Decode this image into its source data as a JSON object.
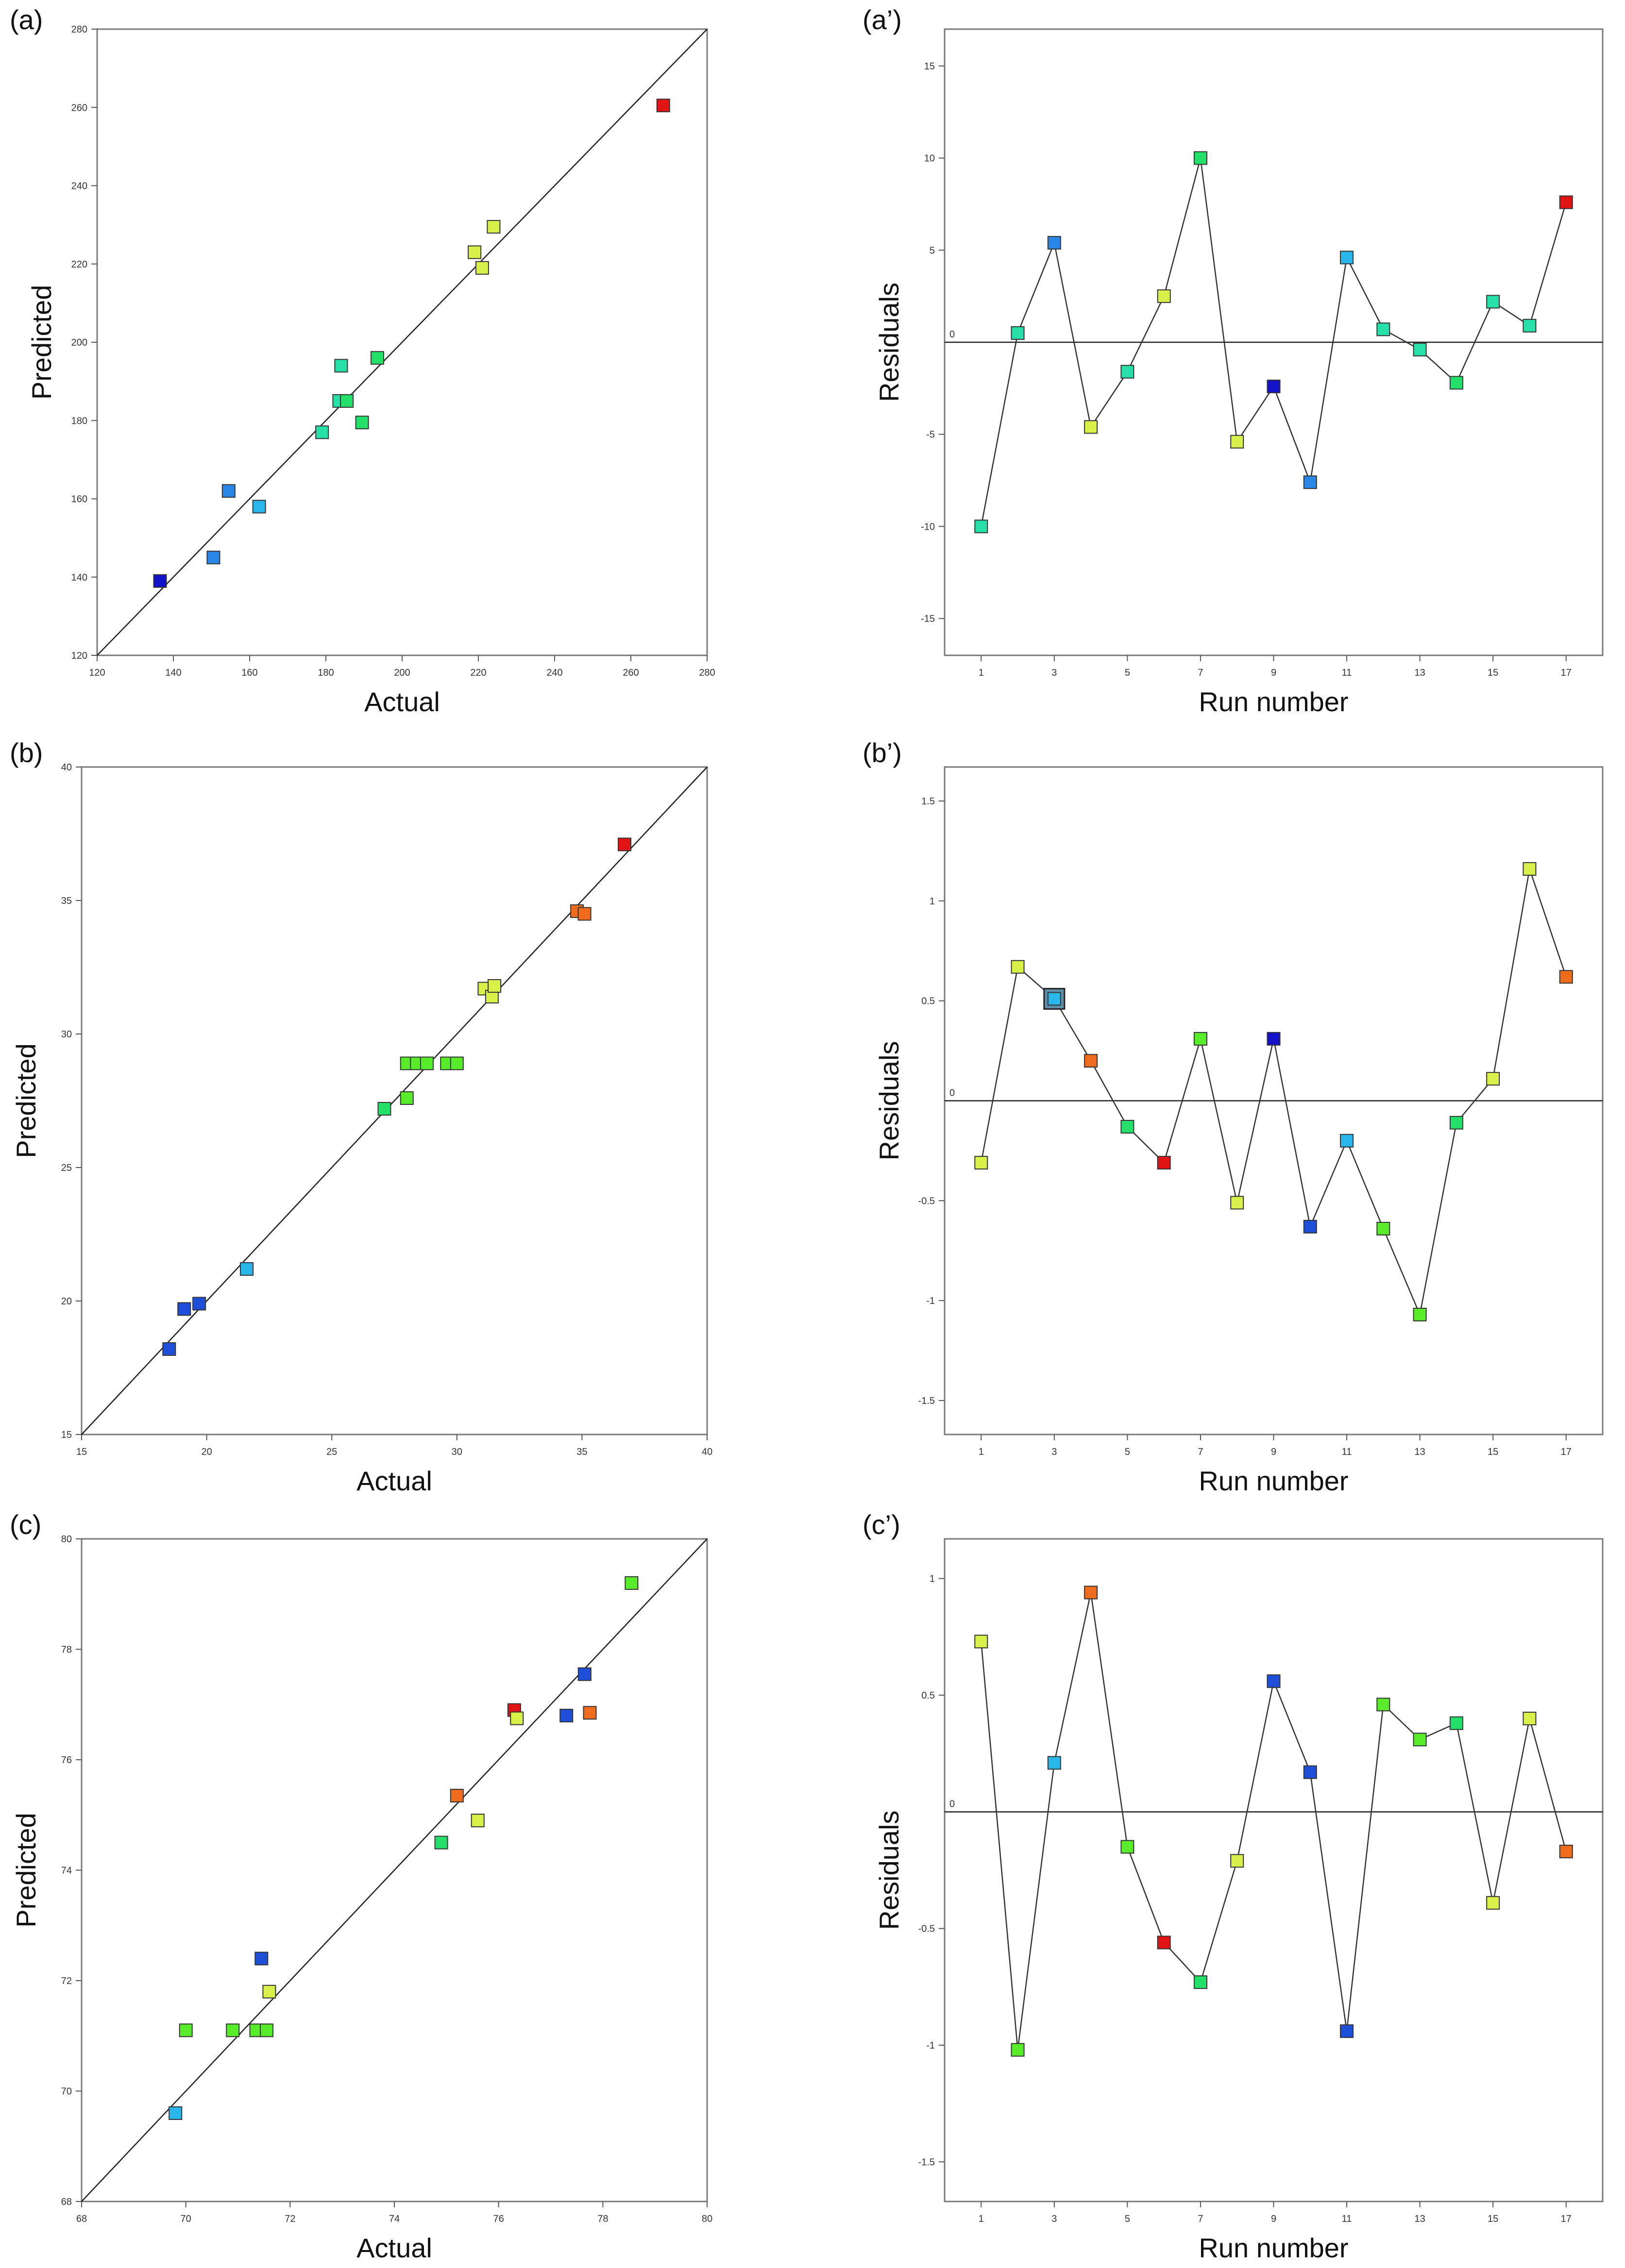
{
  "marker_palette": {
    "red": "#e01414",
    "orange": "#ef6b1d",
    "yellow_green": "#d7f04a",
    "lime": "#58ec2a",
    "green": "#24e06a",
    "teal": "#27e0a8",
    "sky": "#29b6ea",
    "blue_mid": "#2a86e6",
    "royal_blue": "#1f4fd8",
    "navy": "#1212c8"
  },
  "chart_data": [
    {
      "panel": "(a)",
      "type": "scatter",
      "xlabel": "Actual",
      "ylabel": "Predicted",
      "xlim": [
        120,
        280
      ],
      "ylim": [
        120,
        280
      ],
      "xticks": [
        120,
        140,
        160,
        180,
        200,
        220,
        240,
        260,
        280
      ],
      "yticks": [
        120,
        140,
        160,
        180,
        200,
        220,
        240,
        260,
        280
      ],
      "reference_line": [
        [
          120,
          120
        ],
        [
          280,
          280
        ]
      ],
      "points": [
        {
          "x": 136.5,
          "y": 139,
          "color": "navy"
        },
        {
          "x": 150.5,
          "y": 145,
          "color": "blue_mid"
        },
        {
          "x": 154.5,
          "y": 162,
          "color": "blue_mid"
        },
        {
          "x": 162.5,
          "y": 158,
          "color": "sky"
        },
        {
          "x": 179,
          "y": 177,
          "color": "teal"
        },
        {
          "x": 183.5,
          "y": 185,
          "color": "teal"
        },
        {
          "x": 184,
          "y": 194,
          "color": "teal"
        },
        {
          "x": 185.5,
          "y": 185,
          "color": "green"
        },
        {
          "x": 189.5,
          "y": 179.5,
          "color": "green"
        },
        {
          "x": 193.5,
          "y": 196,
          "color": "green"
        },
        {
          "x": 219,
          "y": 223,
          "color": "yellow_green"
        },
        {
          "x": 221,
          "y": 219,
          "color": "yellow_green"
        },
        {
          "x": 224,
          "y": 229.5,
          "color": "yellow_green"
        },
        {
          "x": 268.5,
          "y": 260.5,
          "color": "red"
        }
      ]
    },
    {
      "panel": "(a’)",
      "type": "line",
      "xlabel": "Run number",
      "ylabel": "Residuals",
      "xlim": [
        0,
        18
      ],
      "ylim": [
        -17,
        17
      ],
      "xticks": [
        1,
        3,
        5,
        7,
        9,
        11,
        13,
        15,
        17
      ],
      "yticks": [
        -15,
        -10,
        -5,
        0,
        5,
        10,
        15
      ],
      "zero_label": "0",
      "points": [
        {
          "x": 1,
          "y": -10,
          "color": "teal"
        },
        {
          "x": 2,
          "y": 0.5,
          "color": "teal"
        },
        {
          "x": 3,
          "y": 5.4,
          "color": "blue_mid"
        },
        {
          "x": 4,
          "y": -4.6,
          "color": "yellow_green"
        },
        {
          "x": 5,
          "y": -1.6,
          "color": "teal"
        },
        {
          "x": 6,
          "y": 2.5,
          "color": "yellow_green"
        },
        {
          "x": 7,
          "y": 10,
          "color": "green"
        },
        {
          "x": 8,
          "y": -5.4,
          "color": "yellow_green"
        },
        {
          "x": 9,
          "y": -2.4,
          "color": "navy"
        },
        {
          "x": 10,
          "y": -7.6,
          "color": "blue_mid"
        },
        {
          "x": 11,
          "y": 4.6,
          "color": "sky"
        },
        {
          "x": 12,
          "y": 0.7,
          "color": "teal"
        },
        {
          "x": 13,
          "y": -0.4,
          "color": "teal"
        },
        {
          "x": 14,
          "y": -2.2,
          "color": "green"
        },
        {
          "x": 15,
          "y": 2.2,
          "color": "teal"
        },
        {
          "x": 16,
          "y": 0.9,
          "color": "teal"
        },
        {
          "x": 17,
          "y": 7.6,
          "color": "red"
        }
      ]
    },
    {
      "panel": "(b)",
      "type": "scatter",
      "xlabel": "Actual",
      "ylabel": "Predicted",
      "xlim": [
        15,
        40
      ],
      "ylim": [
        15,
        40
      ],
      "xticks": [
        15,
        20,
        25,
        30,
        35,
        40
      ],
      "yticks": [
        15,
        20,
        25,
        30,
        35,
        40
      ],
      "reference_line": [
        [
          15,
          15
        ],
        [
          40,
          40
        ]
      ],
      "points": [
        {
          "x": 18.5,
          "y": 18.2,
          "color": "royal_blue"
        },
        {
          "x": 19.1,
          "y": 19.7,
          "color": "royal_blue"
        },
        {
          "x": 19.7,
          "y": 19.9,
          "color": "royal_blue"
        },
        {
          "x": 21.6,
          "y": 21.2,
          "color": "sky"
        },
        {
          "x": 27.1,
          "y": 27.2,
          "color": "green"
        },
        {
          "x": 28.0,
          "y": 27.6,
          "color": "lime"
        },
        {
          "x": 28.0,
          "y": 28.9,
          "color": "lime"
        },
        {
          "x": 28.4,
          "y": 28.9,
          "color": "lime"
        },
        {
          "x": 28.8,
          "y": 28.9,
          "color": "lime"
        },
        {
          "x": 29.6,
          "y": 28.9,
          "color": "lime"
        },
        {
          "x": 30.0,
          "y": 28.9,
          "color": "lime"
        },
        {
          "x": 31.1,
          "y": 31.7,
          "color": "yellow_green"
        },
        {
          "x": 31.4,
          "y": 31.4,
          "color": "yellow_green"
        },
        {
          "x": 31.5,
          "y": 31.8,
          "color": "yellow_green"
        },
        {
          "x": 34.8,
          "y": 34.6,
          "color": "orange"
        },
        {
          "x": 35.1,
          "y": 34.5,
          "color": "orange"
        },
        {
          "x": 36.7,
          "y": 37.1,
          "color": "red"
        }
      ]
    },
    {
      "panel": "(b’)",
      "type": "line",
      "xlabel": "Run number",
      "ylabel": "Residuals",
      "xlim": [
        0,
        18
      ],
      "ylim": [
        -1.67,
        1.67
      ],
      "xticks": [
        1,
        3,
        5,
        7,
        9,
        11,
        13,
        15,
        17
      ],
      "yticks": [
        -1.5,
        -1,
        -0.5,
        0,
        0.5,
        1,
        1.5
      ],
      "ytick_labels": [
        "-1.5",
        "-1",
        "-0.5",
        "0",
        "0.5",
        "1",
        "1.5"
      ],
      "zero_label": "0",
      "points": [
        {
          "x": 1,
          "y": -0.31,
          "color": "yellow_green"
        },
        {
          "x": 2,
          "y": 0.67,
          "color": "yellow_green"
        },
        {
          "x": 3,
          "y": 0.51,
          "color": "sky",
          "highlight": true
        },
        {
          "x": 4,
          "y": 0.2,
          "color": "orange"
        },
        {
          "x": 5,
          "y": -0.13,
          "color": "green"
        },
        {
          "x": 6,
          "y": -0.31,
          "color": "red"
        },
        {
          "x": 7,
          "y": 0.31,
          "color": "lime"
        },
        {
          "x": 8,
          "y": -0.51,
          "color": "yellow_green"
        },
        {
          "x": 9,
          "y": 0.31,
          "color": "navy"
        },
        {
          "x": 10,
          "y": -0.63,
          "color": "royal_blue"
        },
        {
          "x": 11,
          "y": -0.2,
          "color": "sky"
        },
        {
          "x": 12,
          "y": -0.64,
          "color": "lime"
        },
        {
          "x": 13,
          "y": -1.07,
          "color": "lime"
        },
        {
          "x": 14,
          "y": -0.11,
          "color": "green"
        },
        {
          "x": 15,
          "y": 0.11,
          "color": "yellow_green"
        },
        {
          "x": 16,
          "y": 1.16,
          "color": "yellow_green"
        },
        {
          "x": 17,
          "y": 0.62,
          "color": "orange"
        }
      ]
    },
    {
      "panel": "(c)",
      "type": "scatter",
      "xlabel": "Actual",
      "ylabel": "Predicted",
      "xlim": [
        68,
        80
      ],
      "ylim": [
        68,
        80
      ],
      "xticks": [
        68,
        70,
        72,
        74,
        76,
        78,
        80
      ],
      "yticks": [
        68,
        70,
        72,
        74,
        76,
        78,
        80
      ],
      "reference_line": [
        [
          68,
          68
        ],
        [
          80,
          80
        ]
      ],
      "points": [
        {
          "x": 69.8,
          "y": 69.6,
          "color": "sky"
        },
        {
          "x": 70.0,
          "y": 71.1,
          "color": "lime"
        },
        {
          "x": 70.9,
          "y": 71.1,
          "color": "lime"
        },
        {
          "x": 71.35,
          "y": 71.1,
          "color": "lime"
        },
        {
          "x": 71.55,
          "y": 71.1,
          "color": "lime"
        },
        {
          "x": 71.45,
          "y": 72.4,
          "color": "royal_blue"
        },
        {
          "x": 71.6,
          "y": 71.8,
          "color": "yellow_green"
        },
        {
          "x": 74.9,
          "y": 74.5,
          "color": "green"
        },
        {
          "x": 75.2,
          "y": 75.35,
          "color": "orange"
        },
        {
          "x": 75.6,
          "y": 74.9,
          "color": "yellow_green"
        },
        {
          "x": 76.3,
          "y": 76.9,
          "color": "red"
        },
        {
          "x": 76.35,
          "y": 76.75,
          "color": "yellow_green"
        },
        {
          "x": 77.3,
          "y": 76.8,
          "color": "royal_blue"
        },
        {
          "x": 77.65,
          "y": 77.55,
          "color": "royal_blue"
        },
        {
          "x": 77.75,
          "y": 76.85,
          "color": "orange"
        },
        {
          "x": 78.55,
          "y": 79.2,
          "color": "lime"
        }
      ]
    },
    {
      "panel": "(c’)",
      "type": "line",
      "xlabel": "Run number",
      "ylabel": "Residuals",
      "xlim": [
        0,
        18
      ],
      "ylim": [
        -1.67,
        1.17
      ],
      "xticks": [
        1,
        3,
        5,
        7,
        9,
        11,
        13,
        15,
        17
      ],
      "yticks": [
        -1.5,
        -1,
        -0.5,
        0,
        0.5,
        1
      ],
      "ytick_labels": [
        "-1.5",
        "-1",
        "-0.5",
        "0",
        "0.5",
        "1"
      ],
      "zero_label": "0",
      "points": [
        {
          "x": 1,
          "y": 0.73,
          "color": "yellow_green"
        },
        {
          "x": 2,
          "y": -1.02,
          "color": "lime"
        },
        {
          "x": 3,
          "y": 0.21,
          "color": "sky"
        },
        {
          "x": 4,
          "y": 0.94,
          "color": "orange"
        },
        {
          "x": 5,
          "y": -0.15,
          "color": "lime"
        },
        {
          "x": 6,
          "y": -0.56,
          "color": "red"
        },
        {
          "x": 7,
          "y": -0.73,
          "color": "green"
        },
        {
          "x": 8,
          "y": -0.21,
          "color": "yellow_green"
        },
        {
          "x": 9,
          "y": 0.56,
          "color": "royal_blue"
        },
        {
          "x": 10,
          "y": 0.17,
          "color": "royal_blue"
        },
        {
          "x": 11,
          "y": -0.94,
          "color": "royal_blue"
        },
        {
          "x": 12,
          "y": 0.46,
          "color": "lime"
        },
        {
          "x": 13,
          "y": 0.31,
          "color": "lime"
        },
        {
          "x": 14,
          "y": 0.38,
          "color": "green"
        },
        {
          "x": 15,
          "y": -0.39,
          "color": "yellow_green"
        },
        {
          "x": 16,
          "y": 0.4,
          "color": "yellow_green"
        },
        {
          "x": 17,
          "y": -0.17,
          "color": "orange"
        }
      ]
    }
  ]
}
